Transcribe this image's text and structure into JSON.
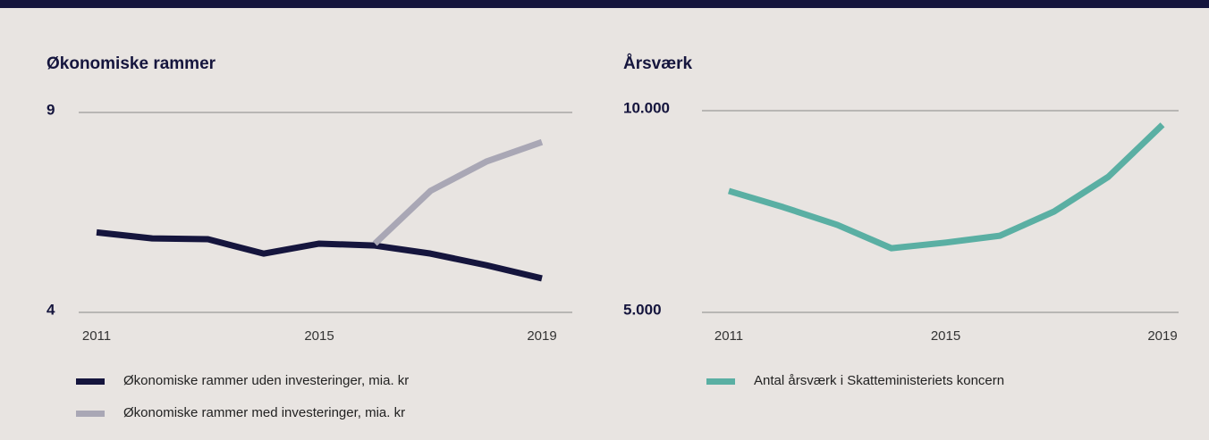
{
  "chart_data": [
    {
      "type": "line",
      "title": "Økonomiske rammer",
      "x": [
        2011,
        2012,
        2013,
        2014,
        2015,
        2016,
        2017,
        2018,
        2019
      ],
      "xlim": [
        2011,
        2019
      ],
      "xticks": [
        2011,
        2015,
        2019
      ],
      "ylim": [
        4,
        9
      ],
      "yticks": [
        4,
        9
      ],
      "grid": true,
      "series": [
        {
          "name": "Økonomiske rammer uden investeringer, mia. kr",
          "color": "#15153d",
          "values": [
            6.0,
            5.85,
            5.83,
            5.47,
            5.72,
            5.67,
            5.47,
            5.18,
            4.85
          ]
        },
        {
          "name": "Økonomiske rammer med investeringer, mia. kr",
          "color": "#a9a7b5",
          "values": [
            null,
            null,
            null,
            null,
            null,
            5.72,
            7.04,
            7.77,
            8.26
          ]
        }
      ]
    },
    {
      "type": "line",
      "title": "Årsværk",
      "x": [
        2011,
        2012,
        2013,
        2014,
        2015,
        2016,
        2017,
        2018,
        2019
      ],
      "xlim": [
        2011,
        2019
      ],
      "xticks": [
        2011,
        2015,
        2019
      ],
      "ylim": [
        5000,
        10000
      ],
      "yticks": [
        {
          "value": 5000,
          "label": "5.000"
        },
        {
          "value": 10000,
          "label": "10.000"
        }
      ],
      "grid": true,
      "series": [
        {
          "name": "Antal årsværk i Skatteministeriets koncern",
          "color": "#5aafa3",
          "values": [
            8010,
            7610,
            7170,
            6590,
            6730,
            6900,
            7500,
            8360,
            9650
          ]
        }
      ]
    }
  ]
}
